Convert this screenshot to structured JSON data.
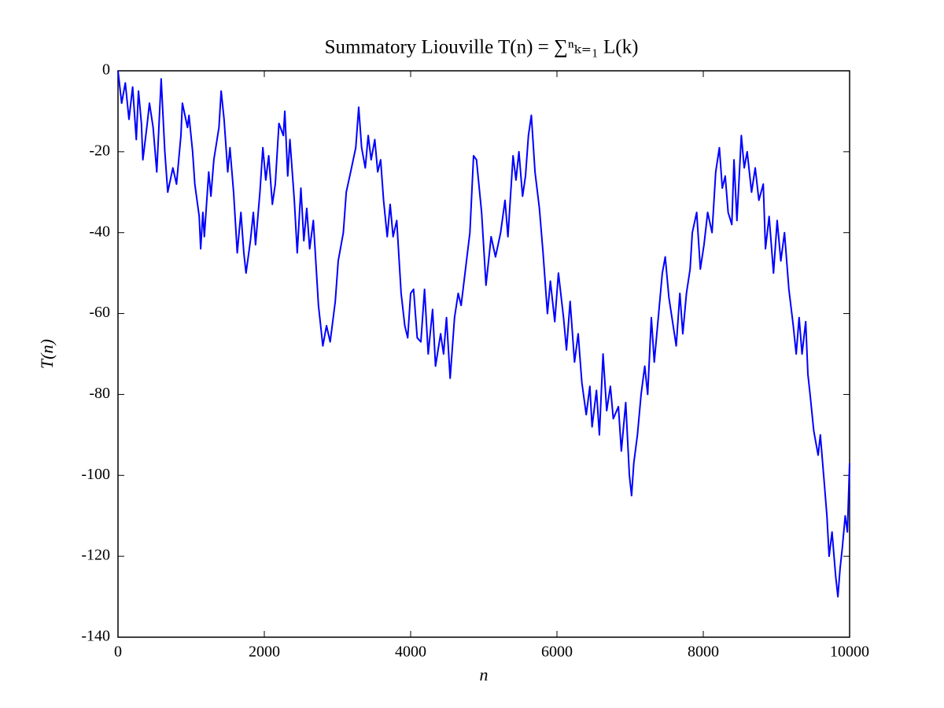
{
  "chart_data": {
    "type": "line",
    "title": "Summatory Liouville T(n) = ∑ⁿₖ₌₁ L(k)",
    "x_label": "n",
    "y_label": "T(n)",
    "xlim": [
      0,
      10000
    ],
    "xticks": [
      0,
      2000,
      4000,
      6000,
      8000,
      10000
    ],
    "ylim": [
      -140,
      0
    ],
    "yticks": [
      -140,
      -120,
      -100,
      -80,
      -60,
      -40,
      -20,
      0
    ],
    "grid": false,
    "series": [
      {
        "name": "T(n)",
        "color": "#0000ff",
        "x": [
          0,
          50,
          100,
          150,
          200,
          250,
          280,
          320,
          340,
          400,
          430,
          480,
          530,
          590,
          640,
          680,
          750,
          800,
          860,
          880,
          950,
          970,
          1020,
          1050,
          1110,
          1130,
          1160,
          1180,
          1240,
          1270,
          1310,
          1380,
          1410,
          1450,
          1500,
          1530,
          1580,
          1630,
          1680,
          1720,
          1750,
          1810,
          1850,
          1880,
          1940,
          1980,
          2020,
          2060,
          2110,
          2150,
          2200,
          2260,
          2280,
          2320,
          2350,
          2410,
          2450,
          2500,
          2540,
          2580,
          2620,
          2670,
          2740,
          2800,
          2850,
          2900,
          2970,
          3010,
          3080,
          3120,
          3180,
          3250,
          3290,
          3330,
          3380,
          3420,
          3460,
          3510,
          3550,
          3590,
          3630,
          3680,
          3720,
          3760,
          3810,
          3870,
          3920,
          3960,
          4000,
          4040,
          4090,
          4140,
          4190,
          4240,
          4300,
          4340,
          4410,
          4450,
          4490,
          4540,
          4600,
          4650,
          4690,
          4750,
          4810,
          4860,
          4900,
          4970,
          5030,
          5100,
          5160,
          5230,
          5290,
          5330,
          5400,
          5440,
          5480,
          5530,
          5570,
          5610,
          5650,
          5700,
          5760,
          5810,
          5870,
          5910,
          5970,
          6020,
          6090,
          6130,
          6180,
          6240,
          6290,
          6340,
          6400,
          6450,
          6480,
          6540,
          6580,
          6630,
          6680,
          6730,
          6770,
          6840,
          6880,
          6940,
          6990,
          7020,
          7050,
          7100,
          7150,
          7200,
          7240,
          7290,
          7330,
          7400,
          7440,
          7480,
          7530,
          7580,
          7630,
          7680,
          7720,
          7770,
          7820,
          7850,
          7910,
          7960,
          8010,
          8060,
          8120,
          8170,
          8220,
          8260,
          8300,
          8340,
          8390,
          8420,
          8460,
          8520,
          8560,
          8600,
          8660,
          8710,
          8760,
          8820,
          8850,
          8900,
          8960,
          9010,
          9060,
          9110,
          9170,
          9230,
          9270,
          9310,
          9350,
          9400,
          9430,
          9460,
          9510,
          9570,
          9600,
          9650,
          9690,
          9720,
          9760,
          9810,
          9840,
          9870,
          9900,
          9940,
          9970,
          10000
        ],
        "values": [
          0,
          -8,
          -3,
          -12,
          -4,
          -17,
          -5,
          -13,
          -22,
          -13,
          -8,
          -14,
          -25,
          -2,
          -20,
          -30,
          -24,
          -28,
          -16,
          -8,
          -14,
          -11,
          -20,
          -28,
          -36,
          -44,
          -35,
          -41,
          -25,
          -31,
          -22,
          -14,
          -5,
          -12,
          -25,
          -19,
          -30,
          -45,
          -35,
          -45,
          -50,
          -42,
          -35,
          -43,
          -30,
          -19,
          -27,
          -21,
          -33,
          -28,
          -13,
          -16,
          -10,
          -26,
          -17,
          -32,
          -45,
          -29,
          -42,
          -34,
          -44,
          -37,
          -58,
          -68,
          -63,
          -67,
          -57,
          -47,
          -40,
          -30,
          -25,
          -19,
          -9,
          -19,
          -24,
          -16,
          -22,
          -17,
          -25,
          -22,
          -32,
          -41,
          -33,
          -41,
          -37,
          -55,
          -63,
          -66,
          -55,
          -54,
          -66,
          -67,
          -54,
          -70,
          -59,
          -73,
          -65,
          -70,
          -61,
          -76,
          -61,
          -55,
          -58,
          -49,
          -40,
          -21,
          -22,
          -35,
          -53,
          -41,
          -46,
          -40,
          -32,
          -41,
          -21,
          -27,
          -20,
          -31,
          -26,
          -16,
          -11,
          -25,
          -34,
          -45,
          -60,
          -52,
          -62,
          -50,
          -61,
          -69,
          -57,
          -72,
          -65,
          -77,
          -85,
          -78,
          -88,
          -79,
          -90,
          -70,
          -84,
          -78,
          -86,
          -83,
          -94,
          -82,
          -100,
          -105,
          -97,
          -90,
          -80,
          -73,
          -80,
          -61,
          -72,
          -58,
          -50,
          -46,
          -56,
          -62,
          -68,
          -55,
          -65,
          -55,
          -49,
          -40,
          -35,
          -49,
          -43,
          -35,
          -40,
          -25,
          -19,
          -29,
          -26,
          -35,
          -38,
          -22,
          -37,
          -16,
          -24,
          -20,
          -30,
          -24,
          -32,
          -28,
          -44,
          -36,
          -50,
          -37,
          -47,
          -40,
          -54,
          -63,
          -70,
          -61,
          -70,
          -62,
          -75,
          -80,
          -89,
          -95,
          -90,
          -101,
          -110,
          -120,
          -114,
          -125,
          -130,
          -123,
          -118,
          -110,
          -114,
          -97
        ]
      }
    ]
  }
}
